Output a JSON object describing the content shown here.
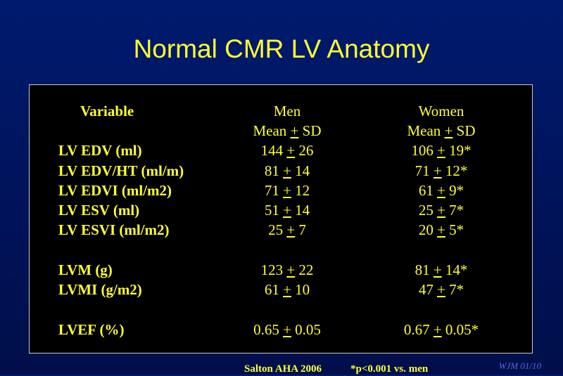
{
  "slide": {
    "title": "Normal CMR LV Anatomy"
  },
  "table": {
    "header": {
      "variable": "Variable",
      "men": "Men",
      "women": "Women",
      "men_sub": "Mean",
      "women_sub": "Mean",
      "pm_symbol": "+",
      "sd": "SD"
    },
    "rows": [
      {
        "variable": "LV EDV (ml)",
        "men_mean": "144",
        "men_sd": "26",
        "women_mean": "106",
        "women_sd": "19*"
      },
      {
        "variable": "LV EDV/HT (ml/m)",
        "men_mean": "81",
        "men_sd": "14",
        "women_mean": "71",
        "women_sd": "12*"
      },
      {
        "variable": "LV EDVI (ml/m2)",
        "men_mean": "71",
        "men_sd": "12",
        "women_mean": "61",
        "women_sd": "9*"
      },
      {
        "variable": "LV ESV (ml)",
        "men_mean": "51",
        "men_sd": "14",
        "women_mean": "25",
        "women_sd": "7*"
      },
      {
        "variable": "LV ESVI (ml/m2)",
        "men_mean": "25",
        "men_sd": "7",
        "women_mean": "20",
        "women_sd": "5*"
      },
      {
        "variable": "LVM (g)",
        "men_mean": "123",
        "men_sd": "22",
        "women_mean": "81",
        "women_sd": "14*"
      },
      {
        "variable": "LVMI (g/m2)",
        "men_mean": "61",
        "men_sd": "10",
        "women_mean": "47",
        "women_sd": "7*"
      },
      {
        "variable": "LVEF (%)",
        "men_mean": "0.65",
        "men_sd": "0.05",
        "women_mean": "0.67",
        "women_sd": "0.05*"
      }
    ]
  },
  "footer": {
    "source": "Salton AHA 2006",
    "significance": "*p<0.001 vs. men",
    "signature": "WJM 01/10"
  },
  "colors": {
    "background": "#001a6e",
    "text": "#ffff33",
    "table_background": "#000000",
    "table_border": "#c8c8c8",
    "signature": "#4d6ce0"
  }
}
